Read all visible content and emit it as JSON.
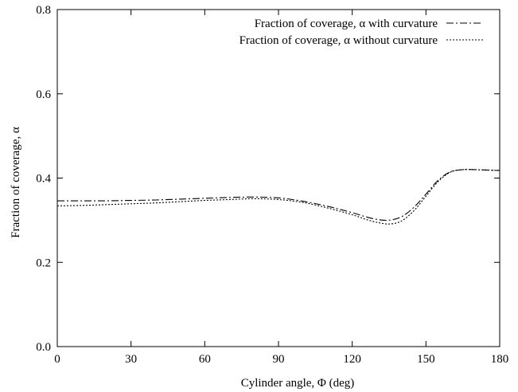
{
  "chart_data": {
    "type": "line",
    "title": "",
    "xlabel": "Cylinder angle, Φ (deg)",
    "ylabel": "Fraction of coverage, α",
    "xlim": [
      0,
      180
    ],
    "ylim": [
      0,
      0.8
    ],
    "xticks": [
      0,
      30,
      60,
      90,
      120,
      150,
      180
    ],
    "xtick_labels": [
      "0",
      "30",
      "60",
      "90",
      "120",
      "150",
      "180"
    ],
    "yticks": [
      0,
      0.2,
      0.4,
      0.6,
      0.8
    ],
    "ytick_labels": [
      "0.0",
      "0.2",
      "0.4",
      "0.6",
      "0.8"
    ],
    "grid": false,
    "legend_position": "top-right",
    "series": [
      {
        "name": "Fraction of coverage, α with curvature",
        "style": "dash-dot",
        "color": "#000000",
        "x": [
          0,
          10,
          20,
          30,
          40,
          50,
          60,
          70,
          80,
          90,
          100,
          110,
          120,
          125,
          130,
          135,
          140,
          145,
          150,
          155,
          160,
          165,
          170,
          175,
          180
        ],
        "y": [
          0.346,
          0.346,
          0.346,
          0.347,
          0.348,
          0.35,
          0.352,
          0.354,
          0.355,
          0.353,
          0.345,
          0.333,
          0.318,
          0.309,
          0.302,
          0.3,
          0.308,
          0.33,
          0.362,
          0.395,
          0.415,
          0.42,
          0.42,
          0.419,
          0.418
        ]
      },
      {
        "name": "Fraction of coverage, α without curvature",
        "style": "dotted",
        "color": "#000000",
        "x": [
          0,
          10,
          20,
          30,
          40,
          50,
          60,
          70,
          80,
          90,
          100,
          110,
          120,
          125,
          130,
          135,
          140,
          145,
          150,
          155,
          160,
          165,
          170,
          175,
          180
        ],
        "y": [
          0.334,
          0.335,
          0.337,
          0.339,
          0.341,
          0.344,
          0.347,
          0.349,
          0.351,
          0.349,
          0.342,
          0.329,
          0.313,
          0.303,
          0.295,
          0.291,
          0.298,
          0.322,
          0.357,
          0.392,
          0.414,
          0.42,
          0.42,
          0.419,
          0.418
        ]
      }
    ]
  }
}
